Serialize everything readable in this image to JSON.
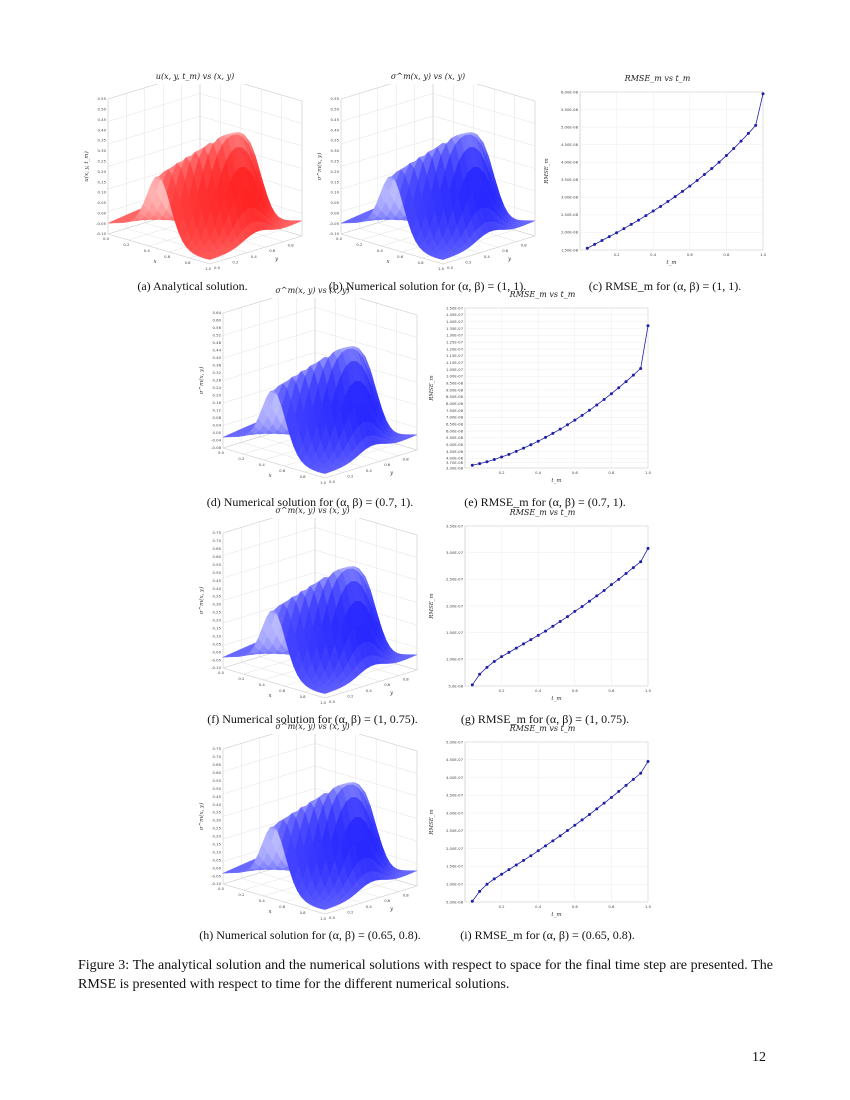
{
  "figure": {
    "caption_text": "Figure 3: The analytical solution and the numerical solutions with respect to space for the final time step are presented. The RMSE is presented with respect to time for the different numerical solutions.",
    "page_number": "12"
  },
  "colors": {
    "red": "#ff1a1a",
    "blue": "#1a1aff",
    "marker": "#1f1fa8"
  },
  "panels": [
    {
      "id": "a",
      "kind": "surface",
      "color": "red",
      "title": "u(x, y, t_m) vs (x, y)",
      "caption_label": "(a)",
      "caption_text": "Analytical solution.",
      "zlabel": "u(x, y, t_m)",
      "zticks": [
        "-0.10",
        "-0.05",
        "0.00",
        "0.05",
        "0.10",
        "0.15",
        "0.20",
        "0.25",
        "0.30",
        "0.35",
        "0.40",
        "0.45",
        "0.50",
        "0.55"
      ],
      "xticks": [
        "0.0",
        "0.2",
        "0.4",
        "0.6",
        "0.8",
        "1.0"
      ],
      "yticks": [
        "0.0",
        "0.2",
        "0.4",
        "0.6",
        "0.8"
      ],
      "xlabel": "x",
      "ylabel": "y"
    },
    {
      "id": "b",
      "kind": "surface",
      "color": "blue",
      "title": "σ^m(x, y) vs (x, y)",
      "caption_label": "(b)",
      "caption_text": "Numerical solution for (α, β) = (1, 1).",
      "zlabel": "σ^m(x, y)",
      "zticks": [
        "-0.10",
        "-0.05",
        "0.00",
        "0.05",
        "0.10",
        "0.15",
        "0.20",
        "0.25",
        "0.30",
        "0.35",
        "0.40",
        "0.45",
        "0.50",
        "0.55"
      ],
      "xticks": [
        "0.0",
        "0.2",
        "0.4",
        "0.6",
        "0.8",
        "1.0"
      ],
      "yticks": [
        "0.0",
        "0.2",
        "0.4",
        "0.6",
        "0.8"
      ],
      "xlabel": "x",
      "ylabel": "y"
    },
    {
      "id": "d",
      "kind": "surface",
      "color": "blue",
      "title": "σ^m(x, y) vs (x, y)",
      "caption_label": "(d)",
      "caption_text": "Numerical solution for (α, β) = (0.7, 1).",
      "zlabel": "σ^m(x, y)",
      "zticks": [
        "-0.08",
        "-0.04",
        "0.00",
        "0.04",
        "0.08",
        "0.12",
        "0.16",
        "0.20",
        "0.24",
        "0.28",
        "0.32",
        "0.36",
        "0.40",
        "0.44",
        "0.48",
        "0.52",
        "0.56",
        "0.60",
        "0.64"
      ],
      "xticks": [
        "0.0",
        "0.2",
        "0.4",
        "0.6",
        "0.8",
        "1.0"
      ],
      "yticks": [
        "0.0",
        "0.2",
        "0.4",
        "0.6",
        "0.8"
      ],
      "xlabel": "x",
      "ylabel": "y"
    },
    {
      "id": "f",
      "kind": "surface",
      "color": "blue",
      "title": "σ^m(x, y) vs (x, y)",
      "caption_label": "(f)",
      "caption_text": "Numerical solution for (α, β) = (1, 0.75).",
      "zlabel": "σ^m(x, y)",
      "zticks": [
        "-0.10",
        "-0.05",
        "0.00",
        "0.05",
        "0.10",
        "0.15",
        "0.20",
        "0.25",
        "0.30",
        "0.35",
        "0.40",
        "0.45",
        "0.50",
        "0.55",
        "0.60",
        "0.65",
        "0.70",
        "0.75"
      ],
      "xticks": [
        "0.0",
        "0.2",
        "0.4",
        "0.6",
        "0.8",
        "1.0"
      ],
      "yticks": [
        "0.0",
        "0.2",
        "0.4",
        "0.6",
        "0.8"
      ],
      "xlabel": "x",
      "ylabel": "y"
    },
    {
      "id": "h",
      "kind": "surface",
      "color": "blue",
      "title": "σ^m(x, y) vs (x, y)",
      "caption_label": "(h)",
      "caption_text": "Numerical solution for (α, β) = (0.65, 0.8).",
      "zlabel": "σ^m(x, y)",
      "zticks": [
        "-0.10",
        "-0.05",
        "0.00",
        "0.05",
        "0.10",
        "0.15",
        "0.20",
        "0.25",
        "0.30",
        "0.35",
        "0.40",
        "0.45",
        "0.50",
        "0.55",
        "0.60",
        "0.65",
        "0.70",
        "0.75"
      ],
      "xticks": [
        "0.0",
        "0.2",
        "0.4",
        "0.6",
        "0.8",
        "1.0"
      ],
      "yticks": [
        "0.0",
        "0.2",
        "0.4",
        "0.6",
        "0.8"
      ],
      "xlabel": "x",
      "ylabel": "y"
    }
  ],
  "chart_data": [
    {
      "id": "c",
      "type": "line",
      "title": "RMSE_m vs t_m",
      "caption_label": "(c)",
      "caption_text": "RMSE_m for (α, β) = (1, 1).",
      "xlabel": "t_m",
      "ylabel": "RMSE_m",
      "xlim": [
        0.0,
        1.0
      ],
      "ylim": [
        1.5e-08,
        6e-08
      ],
      "xticks": [
        "0.2",
        "0.4",
        "0.6",
        "0.8",
        "1.0"
      ],
      "yticks": [
        "1.50E-08",
        "2.00E-08",
        "2.50E-08",
        "3.00E-08",
        "3.50E-08",
        "4.00E-08",
        "4.50E-08",
        "5.00E-08",
        "5.50E-08",
        "6.00E-08"
      ],
      "ytick_values": [
        1.5e-08,
        2e-08,
        2.5e-08,
        3e-08,
        3.5e-08,
        4e-08,
        4.5e-08,
        5e-08,
        5.5e-08,
        6e-08
      ],
      "x": [
        0.04,
        0.08,
        0.12,
        0.16,
        0.2,
        0.24,
        0.28,
        0.32,
        0.36,
        0.4,
        0.44,
        0.48,
        0.52,
        0.56,
        0.6,
        0.64,
        0.68,
        0.72,
        0.76,
        0.8,
        0.84,
        0.88,
        0.92,
        0.96,
        1.0
      ],
      "y": [
        1.55e-08,
        1.66e-08,
        1.77e-08,
        1.88e-08,
        1.99e-08,
        2.11e-08,
        2.23e-08,
        2.35e-08,
        2.48e-08,
        2.61e-08,
        2.74e-08,
        2.88e-08,
        3.02e-08,
        3.17e-08,
        3.32e-08,
        3.48e-08,
        3.65e-08,
        3.82e-08,
        4e-08,
        4.19e-08,
        4.39e-08,
        4.6e-08,
        4.82e-08,
        5.05e-08,
        5.95e-08
      ]
    },
    {
      "id": "e",
      "type": "line",
      "title": "RMSE_m vs t_m",
      "caption_label": "(e)",
      "caption_text": "RMSE_m for (α, β) = (0.7, 1).",
      "xlabel": "t_m",
      "ylabel": "RMSE_m",
      "xlim": [
        0.0,
        1.0
      ],
      "ylim": [
        3.3e-08,
        1.5e-07
      ],
      "xticks": [
        "0.2",
        "0.4",
        "0.6",
        "0.8",
        "1.0"
      ],
      "yticks": [
        "3.30E-08",
        "3.70E-08",
        "4.00E-08",
        "4.50E-08",
        "5.00E-08",
        "5.50E-08",
        "6.00E-08",
        "6.50E-08",
        "7.00E-08",
        "7.50E-08",
        "8.00E-08",
        "8.50E-08",
        "9.00E-08",
        "9.50E-08",
        "1.00E-07",
        "1.05E-07",
        "1.10E-07",
        "1.15E-07",
        "1.20E-07",
        "1.25E-07",
        "1.30E-07",
        "1.35E-07",
        "1.40E-07",
        "1.45E-07",
        "1.50E-07"
      ],
      "ytick_values": [
        3.3e-08,
        3.7e-08,
        4e-08,
        4.5e-08,
        5e-08,
        5.5e-08,
        6e-08,
        6.5e-08,
        7e-08,
        7.5e-08,
        8e-08,
        8.5e-08,
        9e-08,
        9.5e-08,
        1e-07,
        1.05e-07,
        1.1e-07,
        1.15e-07,
        1.2e-07,
        1.25e-07,
        1.3e-07,
        1.35e-07,
        1.4e-07,
        1.45e-07,
        1.5e-07
      ],
      "x": [
        0.04,
        0.08,
        0.12,
        0.16,
        0.2,
        0.24,
        0.28,
        0.32,
        0.36,
        0.4,
        0.44,
        0.48,
        0.52,
        0.56,
        0.6,
        0.64,
        0.68,
        0.72,
        0.76,
        0.8,
        0.84,
        0.88,
        0.92,
        0.96,
        1.0
      ],
      "y": [
        3.5e-08,
        3.62e-08,
        3.76e-08,
        3.92e-08,
        4.1e-08,
        4.3e-08,
        4.52e-08,
        4.75e-08,
        5e-08,
        5.26e-08,
        5.54e-08,
        5.83e-08,
        6.14e-08,
        6.46e-08,
        6.8e-08,
        7.15e-08,
        7.52e-08,
        7.91e-08,
        8.31e-08,
        8.73e-08,
        9.17e-08,
        9.62e-08,
        1.009e-07,
        1.058e-07,
        1.37e-07
      ]
    },
    {
      "id": "g",
      "type": "line",
      "title": "RMSE_m vs t_m",
      "caption_label": "(g)",
      "caption_text": "RMSE_m for (α, β) = (1, 0.75).",
      "xlabel": "t_m",
      "ylabel": "RMSE_m",
      "xlim": [
        0.0,
        1.0
      ],
      "ylim": [
        5e-08,
        3.5e-07
      ],
      "xticks": [
        "0.2",
        "0.4",
        "0.6",
        "0.8",
        "1.0"
      ],
      "yticks": [
        "5.0E-08",
        "1.00E-07",
        "1.50E-07",
        "2.00E-07",
        "2.50E-07",
        "3.00E-07",
        "3.50E-07"
      ],
      "ytick_values": [
        5e-08,
        1e-07,
        1.5e-07,
        2e-07,
        2.5e-07,
        3e-07,
        3.5e-07
      ],
      "x": [
        0.04,
        0.08,
        0.12,
        0.16,
        0.2,
        0.24,
        0.28,
        0.32,
        0.36,
        0.4,
        0.44,
        0.48,
        0.52,
        0.56,
        0.6,
        0.64,
        0.68,
        0.72,
        0.76,
        0.8,
        0.84,
        0.88,
        0.92,
        0.96,
        1.0
      ],
      "y": [
        5.2e-08,
        7.2e-08,
        8.5e-08,
        9.6e-08,
        1.05e-07,
        1.13e-07,
        1.21e-07,
        1.29e-07,
        1.37e-07,
        1.45e-07,
        1.53e-07,
        1.62e-07,
        1.71e-07,
        1.8e-07,
        1.9e-07,
        1.99e-07,
        2.09e-07,
        2.19e-07,
        2.29e-07,
        2.4e-07,
        2.5e-07,
        2.61e-07,
        2.72e-07,
        2.83e-07,
        3.08e-07
      ]
    },
    {
      "id": "i",
      "type": "line",
      "title": "RMSE_m vs t_m",
      "caption_label": "(i)",
      "caption_text": "RMSE_m for (α, β) = (0.65, 0.8).",
      "xlabel": "t_m",
      "ylabel": "RMSE_m",
      "xlim": [
        0.0,
        1.0
      ],
      "ylim": [
        5e-08,
        5e-07
      ],
      "xticks": [
        "0.2",
        "0.4",
        "0.6",
        "0.8",
        "1.0"
      ],
      "yticks": [
        "5.00E-08",
        "1.00E-07",
        "1.50E-07",
        "2.00E-07",
        "2.50E-07",
        "3.00E-07",
        "3.50E-07",
        "4.00E-07",
        "4.50E-07",
        "5.00E-07"
      ],
      "ytick_values": [
        5e-08,
        1e-07,
        1.5e-07,
        2e-07,
        2.5e-07,
        3e-07,
        3.5e-07,
        4e-07,
        4.5e-07,
        5e-07
      ],
      "x": [
        0.04,
        0.08,
        0.12,
        0.16,
        0.2,
        0.24,
        0.28,
        0.32,
        0.36,
        0.4,
        0.44,
        0.48,
        0.52,
        0.56,
        0.6,
        0.64,
        0.68,
        0.72,
        0.76,
        0.8,
        0.84,
        0.88,
        0.92,
        0.96,
        1.0
      ],
      "y": [
        5.2e-08,
        8e-08,
        1e-07,
        1.15e-07,
        1.28e-07,
        1.41e-07,
        1.54e-07,
        1.67e-07,
        1.8e-07,
        1.94e-07,
        2.08e-07,
        2.22e-07,
        2.36e-07,
        2.51e-07,
        2.66e-07,
        2.81e-07,
        2.96e-07,
        3.12e-07,
        3.28e-07,
        3.44e-07,
        3.61e-07,
        3.78e-07,
        3.95e-07,
        4.12e-07,
        4.45e-07
      ]
    }
  ]
}
